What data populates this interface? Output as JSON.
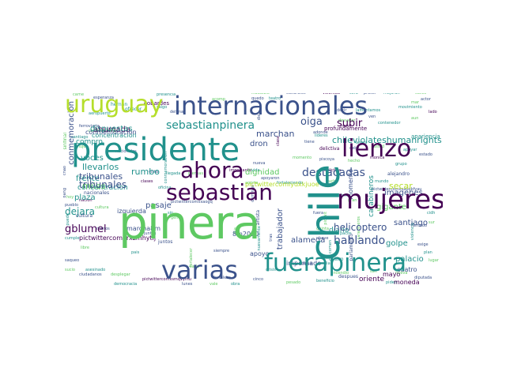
{
  "palette": {
    "background": "#ffffff",
    "dark_purple": "#440154",
    "indigo": "#3b528b",
    "teal": "#21918c",
    "green": "#5ec962",
    "yellow_green": "#b5de2b",
    "dark_blue": "#31688e"
  },
  "wordcloud": {
    "big": {
      "pinera": "pinera",
      "presidente": "presidente",
      "chile": "chile",
      "internacionales": "internacionales",
      "uruguay": "uruguay",
      "fuerapinera": "fuerapinera",
      "varias": "varias",
      "mujeres": "mujeres",
      "lienzo": "lienzo",
      "sebastian": "sebastian",
      "ahora": "ahora"
    },
    "medium": {
      "sebastianpinera": "sebastianpinera",
      "tribunales": "tribunales",
      "hablando": "hablando",
      "destacadas": "destacadas",
      "oiga": "oiga",
      "subir": "subir",
      "dispuestas": "dispuestas",
      "compro": "compro",
      "llevarlos": "llevarlos",
      "marchan": "marchan",
      "ahumada": "ahumada",
      "gblumel": "gblumel",
      "dejara": "dejara",
      "plaza": "plaza",
      "pasaje": "pasaje",
      "voces": "voces",
      "rumbo": "rumbo",
      "chileviolateshumanrights": "chileviolateshumanrights",
      "dignidad": "dignidad",
      "helicoptero": "helicoptero",
      "imagenes": "imagenes",
      "secar": "secar",
      "gigante": "gigante",
      "alameda": "alameda",
      "diario": "diario",
      "palacio": "palacio",
      "santiago": "santiago",
      "golpe": "golpe",
      "cuatro": "cuatro",
      "moneda": "moneda",
      "mayo": "mayo",
      "oriente": "oriente",
      "apoyo": "apoyo",
      "impensado": "impensado",
      "izquierda": "izquierda",
      "frente": "frente",
      "miles": "miles",
      "concentracion": "concentracion",
      "dron": "dron",
      "marcha8m": "marcha8m",
      "m2020": "8m2020",
      "pictwitter1": "pictwittercomlydxkjuoe",
      "pictwitter2": "pictwittercomerxzmhytij",
      "trabajador": "trabajador",
      "momento": "momento",
      "conmemoracion": "conmemoracion",
      "profundamente": "profundamente",
      "apariencia": "apariencia",
      "alejandro": "alejandro",
      "nacionales": "nacionales",
      "cultura": "cultura",
      "juntos": "juntos",
      "delictiva": "delictiva",
      "artista": "artista",
      "castro": "castro",
      "despues": "despues",
      "parlamento": "parlamento"
    }
  }
}
